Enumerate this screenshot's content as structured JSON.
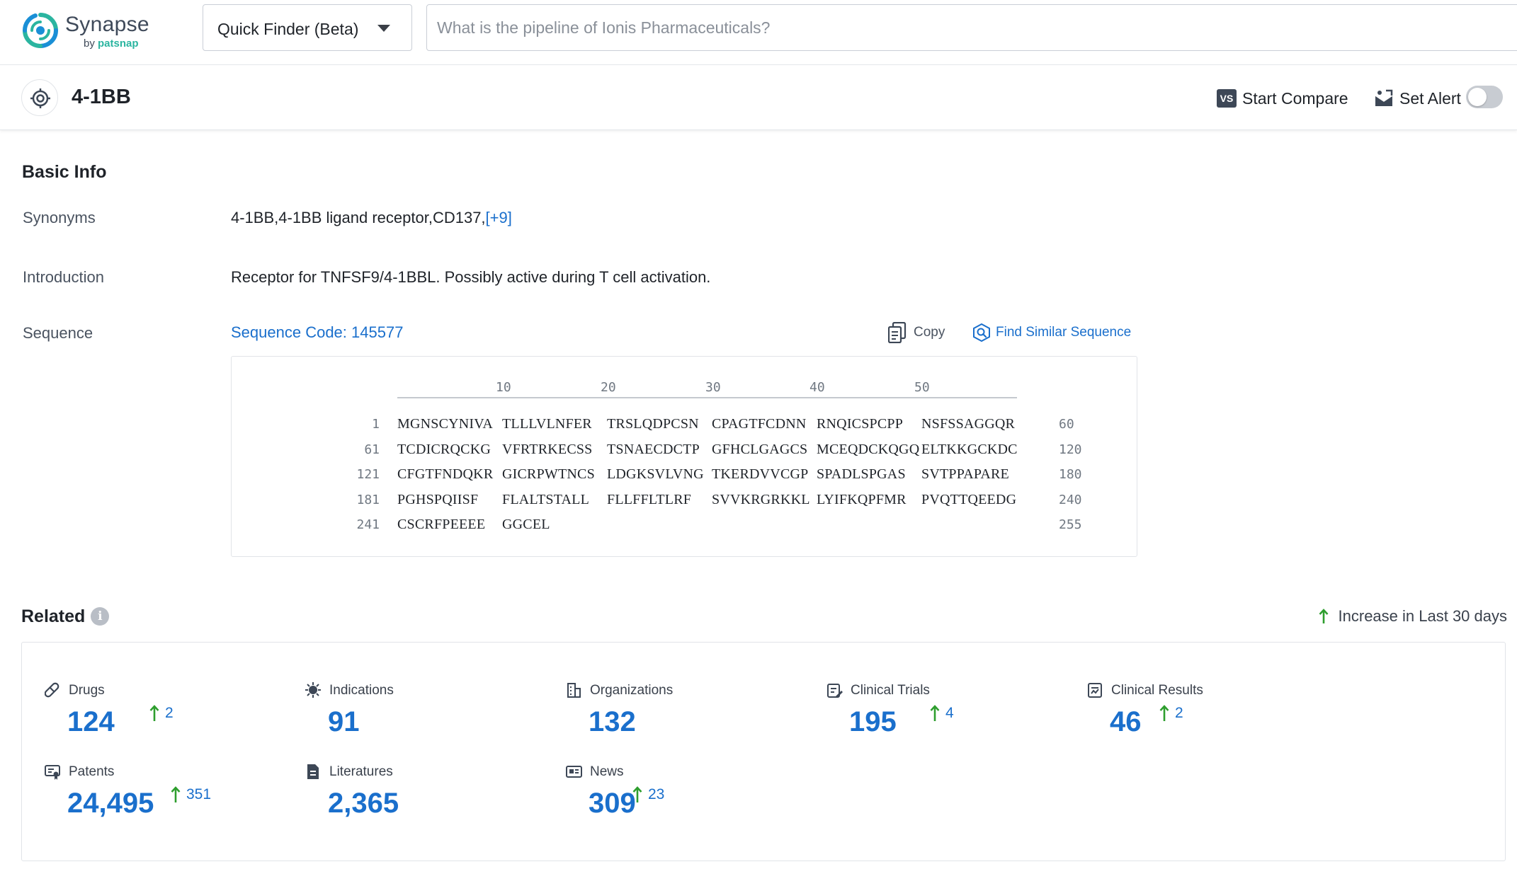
{
  "app": {
    "logo_name": "Synapse",
    "logo_by": "by",
    "logo_brand": "patsnap"
  },
  "finder": {
    "label": "Quick Finder (Beta)",
    "search_placeholder": "What is the pipeline of Ionis Pharmaceuticals?"
  },
  "target": {
    "title": "4-1BB",
    "compare_badge": "VS",
    "compare_label": "Start Compare",
    "alert_label": "Set Alert",
    "alert_enabled": false
  },
  "basic_info": {
    "title": "Basic Info",
    "synonyms_label": "Synonyms",
    "synonyms_value": "4-1BB,4-1BB ligand receptor,CD137,",
    "synonyms_more": "[+9]",
    "intro_label": "Introduction",
    "intro_value": "Receptor for TNFSF9/4-1BBL. Possibly active during T cell activation.",
    "sequence_label": "Sequence",
    "sequence_code": "Sequence Code: 145577",
    "copy_label": "Copy",
    "find_similar_label": "Find Similar Sequence"
  },
  "sequence": {
    "ruler": [
      "10",
      "20",
      "30",
      "40",
      "50"
    ],
    "rows": [
      {
        "start": "1",
        "chunks": [
          "MGNSCYNIVA",
          "TLLLVLNFER",
          "TRSLQDPCSN",
          "CPAGTFCDNN",
          "RNQICSPCPP",
          "NSFSSAGGQR"
        ],
        "end": "60"
      },
      {
        "start": "61",
        "chunks": [
          "TCDICRQCKG",
          "VFRTRKECSS",
          "TSNAECDCTP",
          "GFHCLGAGCS",
          "MCEQDCKQGQ",
          "ELTKKGCKDC"
        ],
        "end": "120"
      },
      {
        "start": "121",
        "chunks": [
          "CFGTFNDQKR",
          "GICRPWTNCS",
          "LDGKSVLVNG",
          "TKERDVVCGP",
          "SPADLSPGAS",
          "SVTPPAPARE"
        ],
        "end": "180"
      },
      {
        "start": "181",
        "chunks": [
          "PGHSPQIISF",
          "FLALTSTALL",
          "FLLFFLTLRF",
          "SVVKRGRKKL",
          "LYIFKQPFMR",
          "PVQTTQEEDG"
        ],
        "end": "240"
      },
      {
        "start": "241",
        "chunks": [
          "CSCRFPEEEE",
          "GGCEL"
        ],
        "end": "255"
      }
    ]
  },
  "related": {
    "title": "Related",
    "info_glyph": "i",
    "increase_note": "Increase in Last 30 days",
    "up_color": "#2e9e2e",
    "value_color": "#1a6fcc",
    "stats": [
      {
        "key": "drugs",
        "label": "Drugs",
        "icon": "pill-icon",
        "value": "124",
        "increase": "2"
      },
      {
        "key": "indications",
        "label": "Indications",
        "icon": "virus-icon",
        "value": "91",
        "increase": ""
      },
      {
        "key": "organizations",
        "label": "Organizations",
        "icon": "building-icon",
        "value": "132",
        "increase": ""
      },
      {
        "key": "clinical-trials",
        "label": "Clinical Trials",
        "icon": "clipboard-icon",
        "value": "195",
        "increase": "4"
      },
      {
        "key": "clinical-results",
        "label": "Clinical Results",
        "icon": "report-icon",
        "value": "46",
        "increase": "2"
      },
      {
        "key": "patents",
        "label": "Patents",
        "icon": "certificate-icon",
        "value": "24,495",
        "increase": "351"
      },
      {
        "key": "literatures",
        "label": "Literatures",
        "icon": "document-icon",
        "value": "2,365",
        "increase": ""
      },
      {
        "key": "news",
        "label": "News",
        "icon": "newspaper-icon",
        "value": "309",
        "increase": "23"
      }
    ]
  }
}
